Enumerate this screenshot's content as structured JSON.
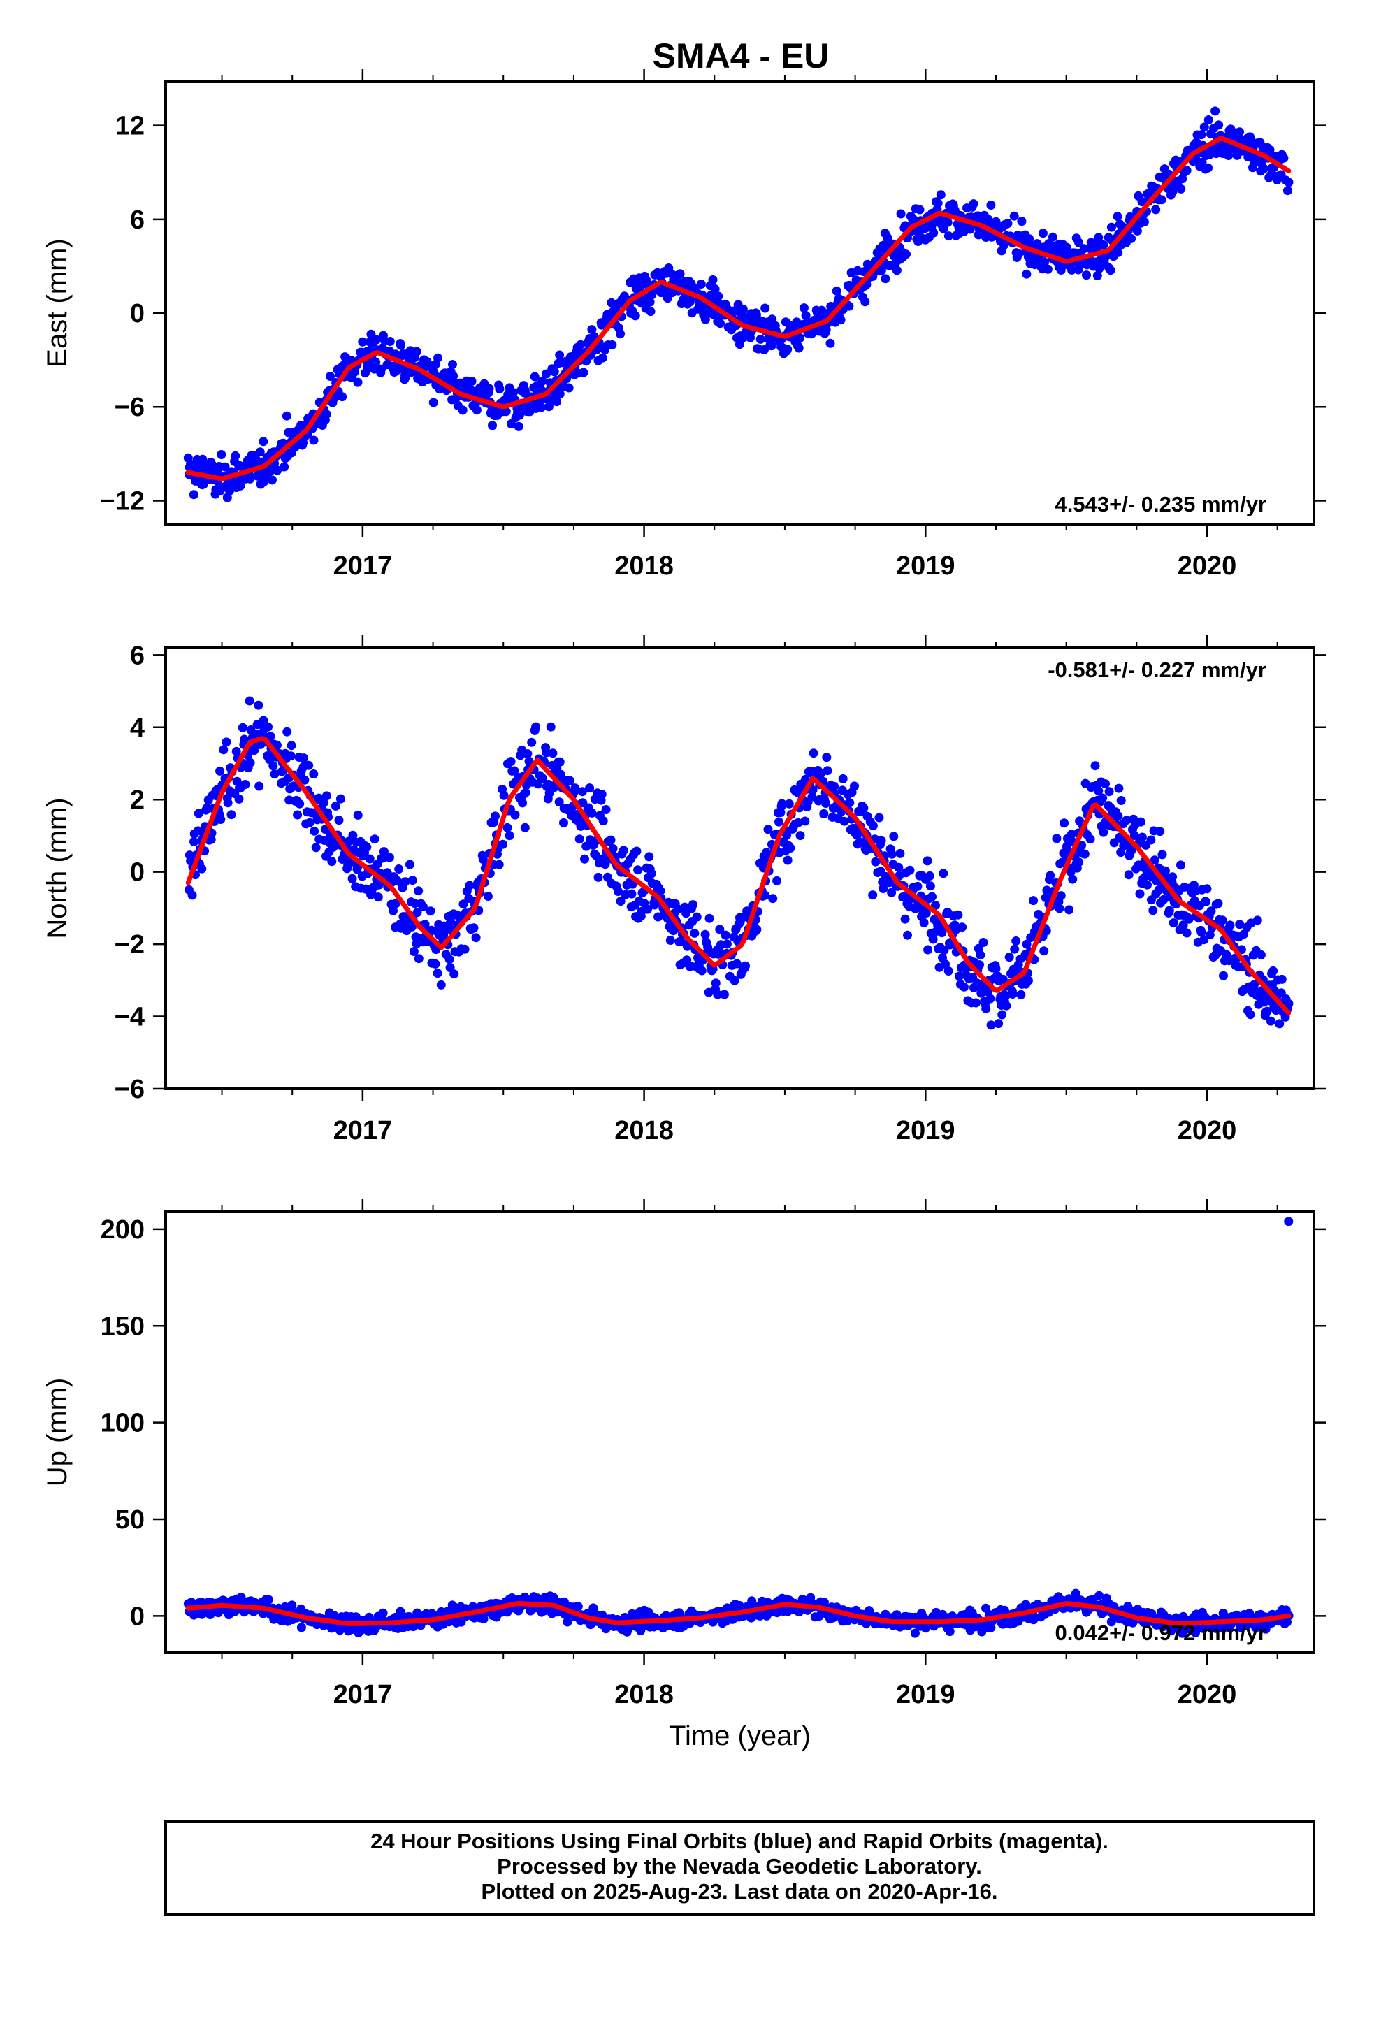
{
  "page": {
    "title": "SMA4 - EU",
    "footer_lines": [
      "24 Hour Positions Using Final Orbits (blue) and Rapid Orbits (magenta).",
      "Processed by the Nevada Geodetic Laboratory.",
      "Plotted on 2025-Aug-23. Last data on 2020-Apr-16."
    ]
  },
  "colors": {
    "final_orbits": "#0000ff",
    "fit_curve": "#ff0000",
    "frame": "#000000"
  },
  "chart_data": [
    {
      "type": "scatter",
      "ylabel": "East (mm)",
      "xlabel": "",
      "xlim": [
        2016.3,
        2020.38
      ],
      "ylim": [
        -13.5,
        14.8
      ],
      "yticks": [
        -12,
        -6,
        0,
        6,
        12
      ],
      "yticklabels": [
        "−12",
        "−6",
        "0",
        "6",
        "12"
      ],
      "xticks": [
        2017,
        2018,
        2019,
        2020
      ],
      "xticklabels": [
        "2017",
        "2018",
        "2019",
        "2020"
      ],
      "rate_annotation": "4.543+/- 0.235 mm/yr",
      "rate_position": "bottom-right",
      "series": [
        {
          "kind": "points",
          "x_start": 2016.38,
          "x_end": 2020.29,
          "trend_mm_per_yr": 4.543,
          "fit_points": [
            [
              2016.38,
              -10.2
            ],
            [
              2016.5,
              -10.6
            ],
            [
              2016.65,
              -9.8
            ],
            [
              2016.8,
              -7.5
            ],
            [
              2016.95,
              -3.5
            ],
            [
              2017.05,
              -2.5
            ],
            [
              2017.2,
              -3.6
            ],
            [
              2017.35,
              -5.2
            ],
            [
              2017.5,
              -6.0
            ],
            [
              2017.65,
              -5.2
            ],
            [
              2017.8,
              -2.5
            ],
            [
              2017.95,
              0.8
            ],
            [
              2018.06,
              2.0
            ],
            [
              2018.2,
              1.0
            ],
            [
              2018.35,
              -0.8
            ],
            [
              2018.5,
              -1.5
            ],
            [
              2018.65,
              -0.5
            ],
            [
              2018.8,
              2.5
            ],
            [
              2018.95,
              5.5
            ],
            [
              2019.05,
              6.4
            ],
            [
              2019.2,
              5.6
            ],
            [
              2019.35,
              4.2
            ],
            [
              2019.5,
              3.3
            ],
            [
              2019.65,
              4.0
            ],
            [
              2019.8,
              7.2
            ],
            [
              2019.95,
              10.2
            ],
            [
              2020.05,
              11.2
            ],
            [
              2020.2,
              10.1
            ],
            [
              2020.29,
              9.1
            ]
          ]
        }
      ]
    },
    {
      "type": "scatter",
      "ylabel": "North (mm)",
      "xlabel": "",
      "xlim": [
        2016.3,
        2020.38
      ],
      "ylim": [
        -6,
        6.2
      ],
      "yticks": [
        -6,
        -4,
        -2,
        0,
        2,
        4,
        6
      ],
      "yticklabels": [
        "−6",
        "−4",
        "−2",
        "0",
        "2",
        "4",
        "6"
      ],
      "xticks": [
        2017,
        2018,
        2019,
        2020
      ],
      "xticklabels": [
        "2017",
        "2018",
        "2019",
        "2020"
      ],
      "rate_annotation": "-0.581+/- 0.227 mm/yr",
      "rate_position": "top-right",
      "series": [
        {
          "kind": "points",
          "x_start": 2016.38,
          "x_end": 2020.29,
          "trend_mm_per_yr": -0.581,
          "fit_points": [
            [
              2016.38,
              -0.3
            ],
            [
              2016.5,
              2.2
            ],
            [
              2016.6,
              3.6
            ],
            [
              2016.65,
              3.7
            ],
            [
              2016.8,
              2.2
            ],
            [
              2016.95,
              0.5
            ],
            [
              2017.1,
              -0.4
            ],
            [
              2017.2,
              -1.5
            ],
            [
              2017.28,
              -2.1
            ],
            [
              2017.4,
              -1.0
            ],
            [
              2017.52,
              2.0
            ],
            [
              2017.62,
              3.1
            ],
            [
              2017.75,
              2.0
            ],
            [
              2017.9,
              0.2
            ],
            [
              2018.05,
              -0.7
            ],
            [
              2018.15,
              -1.8
            ],
            [
              2018.25,
              -2.6
            ],
            [
              2018.35,
              -2.0
            ],
            [
              2018.48,
              1.0
            ],
            [
              2018.6,
              2.6
            ],
            [
              2018.75,
              1.5
            ],
            [
              2018.9,
              -0.3
            ],
            [
              2019.05,
              -1.2
            ],
            [
              2019.15,
              -2.5
            ],
            [
              2019.25,
              -3.3
            ],
            [
              2019.35,
              -2.8
            ],
            [
              2019.48,
              -0.2
            ],
            [
              2019.6,
              1.9
            ],
            [
              2019.75,
              0.7
            ],
            [
              2019.9,
              -0.8
            ],
            [
              2020.05,
              -1.6
            ],
            [
              2020.15,
              -2.7
            ],
            [
              2020.29,
              -3.9
            ]
          ]
        }
      ]
    },
    {
      "type": "scatter",
      "ylabel": "Up (mm)",
      "xlabel": "Time (year)",
      "xlim": [
        2016.3,
        2020.38
      ],
      "ylim": [
        -19,
        209
      ],
      "yticks": [
        0,
        50,
        100,
        150,
        200
      ],
      "yticklabels": [
        "0",
        "50",
        "100",
        "150",
        "200"
      ],
      "xticks": [
        2017,
        2018,
        2019,
        2020
      ],
      "xticklabels": [
        "2017",
        "2018",
        "2019",
        "2020"
      ],
      "rate_annotation": "0.042+/- 0.972 mm/yr",
      "rate_position": "bottom-right",
      "series": [
        {
          "kind": "points",
          "x_start": 2016.38,
          "x_end": 2020.29,
          "trend_mm_per_yr": 0.042,
          "outlier": [
            2020.29,
            204
          ],
          "fit_points": [
            [
              2016.38,
              4.0
            ],
            [
              2016.5,
              5.5
            ],
            [
              2016.65,
              4.0
            ],
            [
              2016.8,
              -1.0
            ],
            [
              2016.95,
              -4.0
            ],
            [
              2017.1,
              -3.5
            ],
            [
              2017.25,
              -2.0
            ],
            [
              2017.4,
              2.0
            ],
            [
              2017.55,
              6.5
            ],
            [
              2017.68,
              5.5
            ],
            [
              2017.8,
              -1.0
            ],
            [
              2017.9,
              -3.5
            ],
            [
              2018.05,
              -2.5
            ],
            [
              2018.2,
              -1.0
            ],
            [
              2018.35,
              2.0
            ],
            [
              2018.5,
              6.0
            ],
            [
              2018.62,
              4.5
            ],
            [
              2018.75,
              0.0
            ],
            [
              2018.88,
              -3.0
            ],
            [
              2019.05,
              -3.0
            ],
            [
              2019.2,
              -2.0
            ],
            [
              2019.35,
              1.5
            ],
            [
              2019.5,
              6.5
            ],
            [
              2019.62,
              4.5
            ],
            [
              2019.75,
              -1.0
            ],
            [
              2019.9,
              -4.0
            ],
            [
              2020.05,
              -3.0
            ],
            [
              2020.2,
              -2.0
            ],
            [
              2020.29,
              0.0
            ]
          ]
        }
      ]
    }
  ]
}
